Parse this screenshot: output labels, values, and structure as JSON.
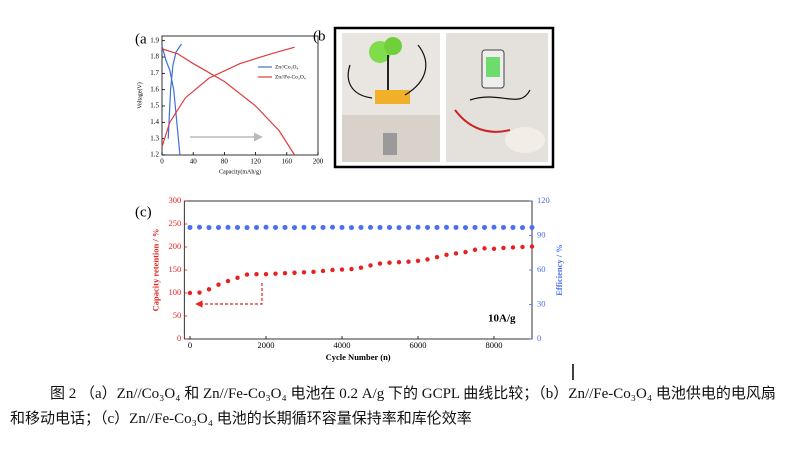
{
  "panels": [
    "(a",
    "(b",
    "(c)"
  ],
  "caption": "图 2 （a）Zn//Co₃O₄ 和 Zn//Fe-Co₃O₄ 电池在 0.2 A/g 下的 GCPL 曲线比较；（b）Zn//Fe-Co₃O₄ 电池供电的电风扇和移动电话；（c）Zn//Fe-Co₃O₄ 电池的长期循环容量保持率和库伦效率",
  "chart_data": [
    {
      "type": "line",
      "xlabel": "Capacity(mAh/g)",
      "ylabel": "Voltage(V)",
      "xlim": [
        0,
        200
      ],
      "xticks": [
        0,
        40,
        80,
        120,
        160,
        200
      ],
      "ylim": [
        1.2,
        1.9
      ],
      "yticks": [
        1.2,
        1.3,
        1.4,
        1.5,
        1.6,
        1.7,
        1.8,
        1.9
      ],
      "legend": "upper right",
      "series": [
        {
          "name": "Zn//Co₃O₄",
          "color": "#3f6fd8",
          "x": [
            0,
            5,
            10,
            15,
            19,
            23,
            null,
            8,
            11,
            14,
            18,
            25
          ],
          "values": [
            1.87,
            1.78,
            1.72,
            1.6,
            1.4,
            1.2,
            null,
            1.3,
            1.6,
            1.75,
            1.83,
            1.88
          ]
        },
        {
          "name": "Zn//Fe-Co₃O₄",
          "color": "#e03a3a",
          "x": [
            0,
            20,
            40,
            80,
            120,
            150,
            170,
            null,
            0,
            10,
            30,
            60,
            100,
            140,
            170
          ],
          "values": [
            1.85,
            1.82,
            1.76,
            1.65,
            1.5,
            1.35,
            1.2,
            null,
            1.25,
            1.4,
            1.55,
            1.67,
            1.76,
            1.82,
            1.86
          ]
        }
      ]
    },
    {
      "type": "scatter",
      "xlabel": "Cycle Number (n)",
      "ylabel": "Capacity retention / %",
      "y2label": "Efficiency / %",
      "annotation": "10A/g",
      "xlim": [
        -150,
        9000
      ],
      "xticks": [
        0,
        2000,
        4000,
        6000,
        8000
      ],
      "ylim": [
        0,
        300
      ],
      "yticks": [
        0,
        50,
        100,
        150,
        200,
        250,
        300
      ],
      "y2lim": [
        0,
        120
      ],
      "y2ticks": [
        0,
        30,
        60,
        90,
        120
      ],
      "x": [
        0,
        250,
        500,
        750,
        1000,
        1250,
        1500,
        1750,
        2000,
        2250,
        2500,
        2750,
        3000,
        3250,
        3500,
        3750,
        4000,
        4250,
        4500,
        4750,
        5000,
        5250,
        5500,
        5750,
        6000,
        6250,
        6500,
        6750,
        7000,
        7250,
        7500,
        7750,
        8000,
        8250,
        8500,
        8750,
        9000
      ],
      "series": [
        {
          "name": "Capacity retention",
          "color": "#e82020",
          "values": [
            100,
            101,
            108,
            118,
            126,
            133,
            140,
            141,
            141,
            142,
            143,
            144,
            145,
            146,
            148,
            150,
            151,
            152,
            155,
            160,
            164,
            166,
            167,
            168,
            170,
            173,
            178,
            183,
            186,
            189,
            194,
            197,
            196,
            198,
            199,
            200,
            201
          ]
        },
        {
          "name": "Efficiency",
          "color": "#4a6ff0",
          "axis": "y2",
          "values": [
            97,
            97.2,
            96.9,
            97,
            97.1,
            97,
            96.9,
            97,
            97.2,
            97,
            97,
            96.9,
            97.1,
            97,
            97,
            97.2,
            97,
            96.9,
            97,
            97.1,
            97,
            97,
            96.9,
            97,
            97.2,
            97,
            97,
            97.1,
            97,
            96.9,
            97,
            97,
            97.2,
            97,
            97,
            96.9,
            97
          ]
        }
      ]
    }
  ]
}
